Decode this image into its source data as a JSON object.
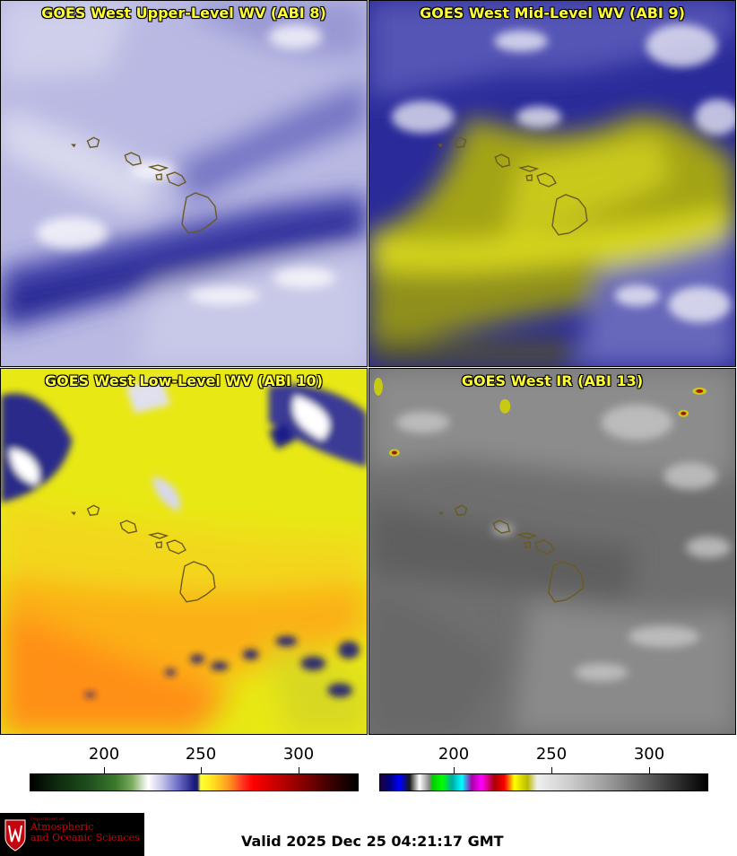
{
  "panels": [
    {
      "title": "GOES West Upper-Level WV (ABI 8)"
    },
    {
      "title": "GOES West Mid-Level WV (ABI 9)"
    },
    {
      "title": "GOES West Low-Level WV (ABI 10)"
    },
    {
      "title": "GOES West IR (ABI 13)"
    }
  ],
  "colorbars": [
    {
      "name": "water-vapor",
      "ticks": [
        "200",
        "250",
        "300"
      ]
    },
    {
      "name": "infrared",
      "ticks": [
        "200",
        "250",
        "300"
      ]
    }
  ],
  "logo": {
    "line1": "Department of",
    "line2": "Atmospheric",
    "line3": "and Oceanic Sciences"
  },
  "valid_time": "Valid 2025 Dec 25 04:21:17 GMT",
  "colors": {
    "title_text": "#ffff33",
    "coastline": "#6b5a1e",
    "logo_red": "#c5050c"
  }
}
